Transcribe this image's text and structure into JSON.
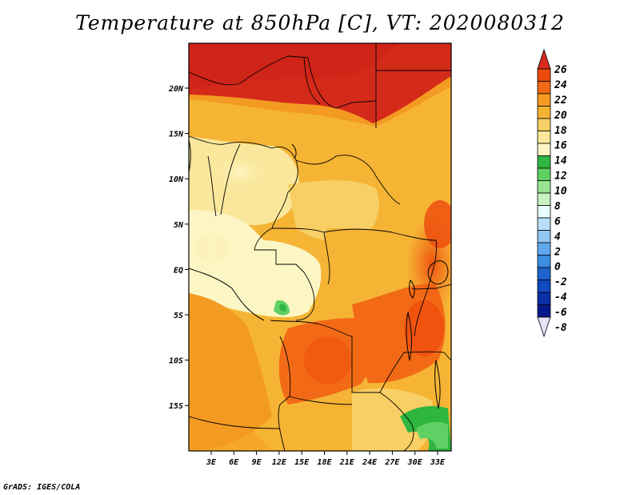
{
  "title": "Temperature at 850hPa [C], VT: 2020080312",
  "credit": "GrADS: IGES/COLA",
  "map": {
    "lat_labels": [
      "20N",
      "15N",
      "10N",
      "5N",
      "EQ",
      "5S",
      "10S",
      "15S"
    ],
    "lon_labels": [
      "3E",
      "6E",
      "9E",
      "12E",
      "15E",
      "18E",
      "21E",
      "24E",
      "27E",
      "30E",
      "33E"
    ]
  },
  "colorbar": {
    "labels": [
      "26",
      "24",
      "22",
      "20",
      "18",
      "16",
      "14",
      "12",
      "10",
      "8",
      "6",
      "4",
      "2",
      "0",
      "-2",
      "-4",
      "-6",
      "-8"
    ],
    "colors": [
      "#d42a1a",
      "#ee4a0c",
      "#f26a16",
      "#f39a22",
      "#f5b434",
      "#f8cf64",
      "#fbe79b",
      "#fcf6c4",
      "#2eb640",
      "#5fd064",
      "#96e48f",
      "#c8f2c0",
      "#e8fbff",
      "#b6def8",
      "#8ec8f3",
      "#5ea8ee",
      "#3c8ce2",
      "#2063cf",
      "#0f4ac0",
      "#0a30a6",
      "#05198a",
      "#e4e0f6"
    ]
  }
}
